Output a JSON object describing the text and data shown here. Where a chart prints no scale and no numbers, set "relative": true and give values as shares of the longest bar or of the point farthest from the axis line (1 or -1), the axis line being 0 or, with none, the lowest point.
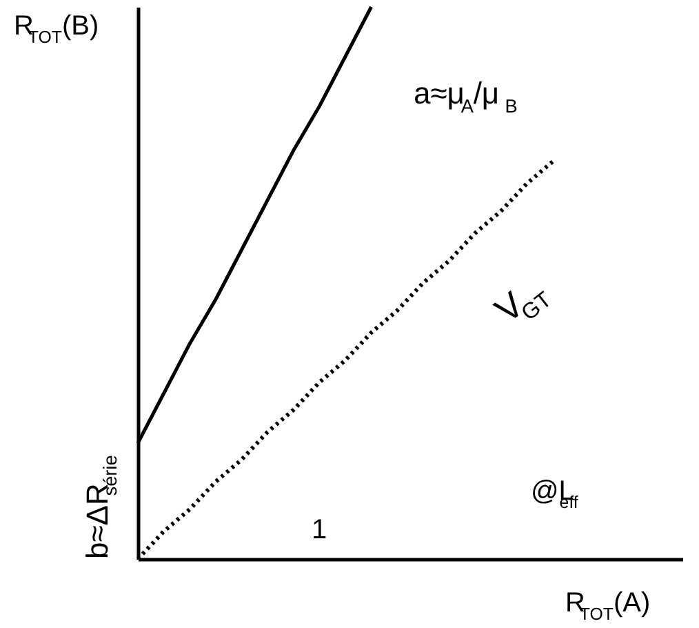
{
  "chart_data": {
    "type": "line",
    "relative": true,
    "xlabel": "R$_{TOT}$(A)",
    "ylabel": "R$_{TOT}$(B)",
    "tick_labels": false,
    "grid": false,
    "categories": [
      null,
      null,
      null,
      null,
      null,
      null,
      null,
      null,
      null,
      null,
      null,
      null,
      null,
      null,
      null,
      null,
      null,
      null,
      null,
      null,
      null,
      null
    ],
    "series": [
      {
        "color": "#000000",
        "values": [
          0.21,
          0.3,
          0.39,
          0.47,
          0.56,
          0.65,
          0.74,
          0.82,
          0.91,
          1.0,
          null,
          null,
          null,
          null,
          null,
          null,
          null,
          null,
          null,
          null,
          null,
          null
        ],
        "line_style": "solid"
      },
      {
        "color": "#000000",
        "values": [
          0,
          0.05,
          0.09,
          0.14,
          0.18,
          0.23,
          0.27,
          0.32,
          0.36,
          0.41,
          0.45,
          0.5,
          0.54,
          0.59,
          0.63,
          0.68,
          0.72,
          null,
          null,
          null,
          null,
          null
        ],
        "line_style": "dotted"
      }
    ],
    "annotations": [
      "a≈μ$_{A}$/μ$_{B}$",
      "1",
      "V$_{GT}$",
      "@L$_{eff}$",
      "b≈ΔR$_{série}$"
    ]
  }
}
